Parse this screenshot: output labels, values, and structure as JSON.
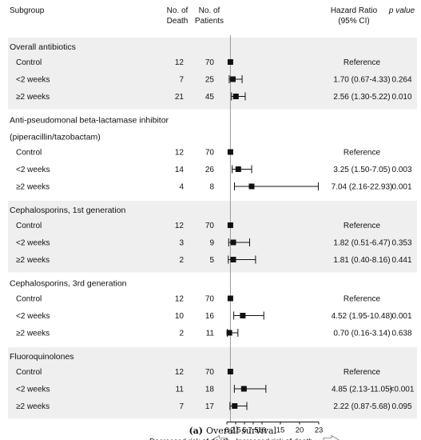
{
  "chart_data": {
    "type": "forest",
    "caption_label": "(a)",
    "caption_text": "Overall survival",
    "headers": {
      "subgroup": "Subgroup",
      "deaths": [
        "No. of",
        "Death"
      ],
      "patients": [
        "No. of",
        "Patients"
      ],
      "hr": [
        "Hazard Ratio",
        "(95% CI)"
      ],
      "p": "p value"
    },
    "x_ticks": [
      "0",
      "2.5",
      "5",
      "7.5",
      "10",
      "15",
      "20",
      "23"
    ],
    "x_tick_values": [
      0,
      2.5,
      5,
      7.5,
      10,
      15,
      20,
      23
    ],
    "reference_line": 1,
    "legend": {
      "left": "Decreased risk of death",
      "right": "Increased risk of death"
    },
    "groups": [
      {
        "title_lines": [
          "Overall antibiotics"
        ],
        "shaded": true,
        "rows": [
          {
            "label": "Control",
            "deaths": "12",
            "patients": "70",
            "hr": 1,
            "lo": null,
            "hi": null,
            "hr_text": "Reference",
            "p": ""
          },
          {
            "label": "<2 weeks",
            "deaths": "7",
            "patients": "25",
            "hr": 1.7,
            "lo": 0.67,
            "hi": 4.33,
            "hr_text": "1.70 (0.67-4.33)",
            "p": "0.264"
          },
          {
            "label": "≥2 weeks",
            "deaths": "21",
            "patients": "45",
            "hr": 2.56,
            "lo": 1.3,
            "hi": 5.22,
            "hr_text": "2.56 (1.30-5.22)",
            "p": "0.010"
          }
        ]
      },
      {
        "title_lines": [
          "Anti-pseudomonal beta-lactamase inhibitor",
          "(piperacillin/tazobactam)"
        ],
        "shaded": false,
        "rows": [
          {
            "label": "Control",
            "deaths": "12",
            "patients": "70",
            "hr": 1,
            "lo": null,
            "hi": null,
            "hr_text": "Reference",
            "p": ""
          },
          {
            "label": "<2 weeks",
            "deaths": "14",
            "patients": "26",
            "hr": 3.25,
            "lo": 1.5,
            "hi": 7.05,
            "hr_text": "3.25 (1.50-7.05)",
            "p": "0.003"
          },
          {
            "label": "≥2 weeks",
            "deaths": "4",
            "patients": "8",
            "hr": 7.04,
            "lo": 2.16,
            "hi": 22.93,
            "hr_text": "7.04 (2.16-22.93)",
            "p": "0.001"
          }
        ]
      },
      {
        "title_lines": [
          "Cephalosporins, 1st generation"
        ],
        "shaded": true,
        "rows": [
          {
            "label": "Control",
            "deaths": "12",
            "patients": "70",
            "hr": 1,
            "lo": null,
            "hi": null,
            "hr_text": "Reference",
            "p": ""
          },
          {
            "label": "<2 weeks",
            "deaths": "3",
            "patients": "9",
            "hr": 1.82,
            "lo": 0.51,
            "hi": 6.47,
            "hr_text": "1.82 (0.51-6.47)",
            "p": "0.353"
          },
          {
            "label": "≥2 weeks",
            "deaths": "2",
            "patients": "5",
            "hr": 1.81,
            "lo": 0.4,
            "hi": 8.16,
            "hr_text": "1.81 (0.40-8.16)",
            "p": "0.441"
          }
        ]
      },
      {
        "title_lines": [
          "Cephalosporins, 3rd generation"
        ],
        "shaded": false,
        "rows": [
          {
            "label": "Control",
            "deaths": "12",
            "patients": "70",
            "hr": 1,
            "lo": null,
            "hi": null,
            "hr_text": "Reference",
            "p": ""
          },
          {
            "label": "<2 weeks",
            "deaths": "10",
            "patients": "16",
            "hr": 4.52,
            "lo": 1.95,
            "hi": 10.48,
            "hr_text": "4.52 (1.95-10.48)",
            "p": "0.001"
          },
          {
            "label": "≥2 weeks",
            "deaths": "2",
            "patients": "11",
            "hr": 0.7,
            "lo": 0.16,
            "hi": 3.14,
            "hr_text": "0.70 (0.16-3.14)",
            "p": "0.638"
          }
        ]
      },
      {
        "title_lines": [
          "Fluoroquinolones"
        ],
        "shaded": true,
        "rows": [
          {
            "label": "Control",
            "deaths": "12",
            "patients": "70",
            "hr": 1,
            "lo": null,
            "hi": null,
            "hr_text": "Reference",
            "p": ""
          },
          {
            "label": "<2 weeks",
            "deaths": "11",
            "patients": "18",
            "hr": 4.85,
            "lo": 2.13,
            "hi": 11.05,
            "hr_text": "4.85 (2.13-11.05)",
            "p": "<0.001"
          },
          {
            "label": "≥2 weeks",
            "deaths": "7",
            "patients": "17",
            "hr": 2.22,
            "lo": 0.87,
            "hi": 5.68,
            "hr_text": "2.22 (0.87-5.68)",
            "p": "0.095"
          }
        ]
      }
    ]
  }
}
